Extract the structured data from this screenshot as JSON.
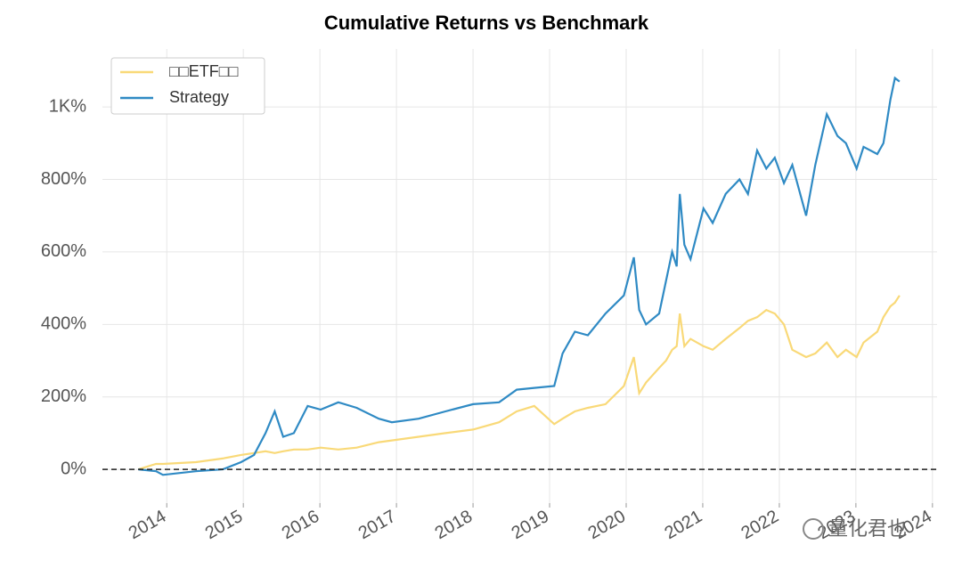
{
  "chart_data": {
    "type": "line",
    "title": "Cumulative Returns vs Benchmark",
    "x": [
      2013.63,
      2013.86,
      2013.95,
      2014.38,
      2014.73,
      2014.97,
      2015.14,
      2015.29,
      2015.41,
      2015.52,
      2015.66,
      2015.84,
      2016.01,
      2016.24,
      2016.48,
      2016.77,
      2016.94,
      2017.29,
      2017.64,
      2018.0,
      2018.34,
      2018.57,
      2018.8,
      2019.06,
      2019.17,
      2019.33,
      2019.5,
      2019.73,
      2019.97,
      2020.1,
      2020.17,
      2020.26,
      2020.43,
      2020.52,
      2020.6,
      2020.66,
      2020.7,
      2020.76,
      2020.84,
      2021.01,
      2021.13,
      2021.3,
      2021.48,
      2021.59,
      2021.71,
      2021.83,
      2021.94,
      2022.06,
      2022.17,
      2022.35,
      2022.47,
      2022.62,
      2022.76,
      2022.87,
      2023.01,
      2023.1,
      2023.28,
      2023.36,
      2023.45,
      2023.51,
      2023.57
    ],
    "series": [
      {
        "name": "□□ETF□□",
        "color": "#f9d978",
        "values": [
          0,
          15,
          15,
          20,
          30,
          40,
          45,
          50,
          45,
          50,
          55,
          55,
          60,
          55,
          60,
          75,
          80,
          90,
          100,
          110,
          130,
          160,
          175,
          125,
          140,
          160,
          170,
          180,
          230,
          310,
          210,
          240,
          280,
          300,
          330,
          340,
          430,
          340,
          360,
          340,
          330,
          360,
          390,
          410,
          420,
          440,
          430,
          400,
          330,
          310,
          320,
          350,
          310,
          330,
          310,
          350,
          380,
          420,
          450,
          460,
          480
        ]
      },
      {
        "name": "Strategy",
        "color": "#2f8ac4",
        "values": [
          0,
          -5,
          -15,
          -5,
          0,
          20,
          40,
          100,
          160,
          90,
          100,
          175,
          165,
          185,
          170,
          140,
          130,
          140,
          160,
          180,
          185,
          220,
          225,
          230,
          320,
          380,
          370,
          430,
          480,
          585,
          440,
          400,
          430,
          520,
          600,
          560,
          760,
          620,
          580,
          720,
          680,
          760,
          800,
          760,
          880,
          830,
          860,
          790,
          840,
          700,
          840,
          980,
          920,
          900,
          830,
          890,
          870,
          900,
          1020,
          1080,
          1070
        ]
      }
    ],
    "xlim": [
      2013.16,
      2024.06
    ],
    "xticks": [
      2014,
      2015,
      2016,
      2017,
      2018,
      2019,
      2020,
      2021,
      2022,
      2023,
      2024
    ],
    "ylim": [
      -93,
      1160
    ],
    "yticks": [
      {
        "value": 0,
        "label": "0%"
      },
      {
        "value": 200,
        "label": "200%"
      },
      {
        "value": 400,
        "label": "400%"
      },
      {
        "value": 600,
        "label": "600%"
      },
      {
        "value": 800,
        "label": "800%"
      },
      {
        "value": 1000,
        "label": "1K%"
      }
    ],
    "hline": 0,
    "grid": true,
    "legend": "upper left",
    "watermark": "量化君也"
  }
}
